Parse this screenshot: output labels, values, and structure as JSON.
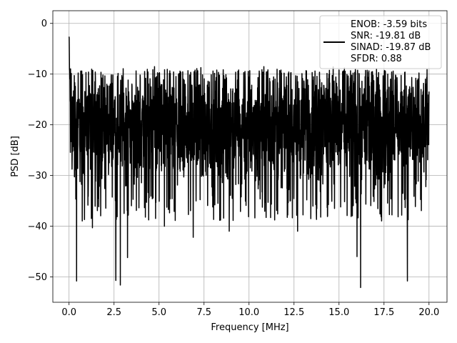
{
  "chart_data": {
    "type": "line",
    "xlabel": "Frequency [MHz]",
    "ylabel": "PSD [dB]",
    "xlim": [
      -0.9,
      21.0
    ],
    "ylim": [
      -55.0,
      2.5
    ],
    "xticks": [
      0.0,
      2.5,
      5.0,
      7.5,
      10.0,
      12.5,
      15.0,
      17.5,
      20.0
    ],
    "xtick_labels": [
      "0.0",
      "2.5",
      "5.0",
      "7.5",
      "10.0",
      "12.5",
      "15.0",
      "17.5",
      "20.0"
    ],
    "yticks": [
      0,
      -10,
      -20,
      -30,
      -40,
      -50
    ],
    "ytick_labels": [
      "0",
      "−10",
      "−20",
      "−30",
      "−40",
      "−50"
    ],
    "grid": true,
    "legend": {
      "placement": "top-right",
      "entries": [
        "ENOB: -3.59 bits",
        "SNR: -19.81 dB",
        "SINAD: -19.87 dB",
        "SFDR: 0.88"
      ]
    },
    "series": [
      {
        "color": "#000000",
        "x_range": [
          0.0,
          20.0
        ],
        "peak": {
          "x": 0.0,
          "y": 0.0
        },
        "noise_floor_mean": -20,
        "noise_upper_envelope": -9,
        "noise_lower_typical": -34,
        "dips": [
          {
            "x": 0.42,
            "y": -50.8
          },
          {
            "x": 1.3,
            "y": -40.3
          },
          {
            "x": 2.6,
            "y": -50.7
          },
          {
            "x": 2.85,
            "y": -51.6
          },
          {
            "x": 3.25,
            "y": -46.2
          },
          {
            "x": 5.3,
            "y": -40.0
          },
          {
            "x": 6.9,
            "y": -42.2
          },
          {
            "x": 8.9,
            "y": -41.0
          },
          {
            "x": 12.7,
            "y": -41.0
          },
          {
            "x": 16.0,
            "y": -46.0
          },
          {
            "x": 16.2,
            "y": -52.1
          },
          {
            "x": 18.8,
            "y": -50.8
          }
        ]
      }
    ]
  }
}
